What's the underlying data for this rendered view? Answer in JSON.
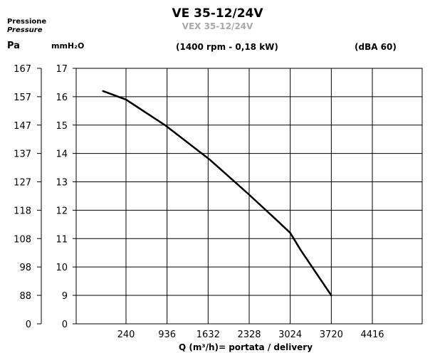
{
  "header": {
    "pressure_label_it": "Pressione",
    "pressure_label_en": "Pressure",
    "unit_pa": "Pa",
    "unit_mmh2o": "mmH₂O",
    "title": "VE 35-12/24V",
    "subtitle": "VEX 35-12/24V",
    "spec": "(1400 rpm - 0,18 kW)",
    "noise": "(dBA 60)"
  },
  "chart_data": {
    "type": "line",
    "title": "VE 35-12/24V",
    "subtitle": "VEX 35-12/24V",
    "xlabel": "Q (m³/h)= portata / delivery",
    "ylabel_left": "Pa",
    "ylabel_right": "mmH₂O",
    "x_ticks": [
      240,
      936,
      1632,
      2328,
      3024,
      3720,
      4416
    ],
    "y_ticks_pa": [
      0,
      88,
      98,
      108,
      118,
      127,
      137,
      147,
      157,
      167
    ],
    "y_ticks_mmh2o": [
      0,
      9,
      10,
      11,
      12,
      13,
      14,
      15,
      16,
      17
    ],
    "ylim_mmh2o": [
      0,
      17
    ],
    "grid": true,
    "series": [
      {
        "x": [
          -150,
          240,
          900,
          1650,
          2300,
          2820,
          3024,
          3200,
          3720
        ],
        "y": [
          16.2,
          15.9,
          15.0,
          13.8,
          12.6,
          11.6,
          11.2,
          10.6,
          9.0
        ]
      }
    ]
  }
}
